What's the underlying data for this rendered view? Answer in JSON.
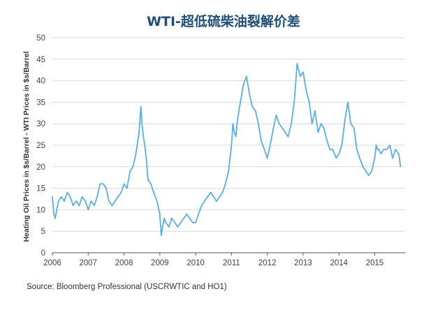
{
  "title": "WTI-超低硫柴油裂解价差",
  "source": "Source: Bloomberg Professional (USCRWTIC and HO1)",
  "chart_data": {
    "type": "line",
    "title": "WTI-超低硫柴油裂解价差",
    "ylabel": "Heating Oil Prices in $s/Barrel - WTI Prices in $s/Barrel",
    "xlabel": "",
    "x_ticks": [
      "2006",
      "2007",
      "2008",
      "2009",
      "2010",
      "2011",
      "2012",
      "2013",
      "2014",
      "2015"
    ],
    "y_ticks": [
      0,
      5,
      10,
      15,
      20,
      25,
      30,
      35,
      40,
      45,
      50
    ],
    "xlim": [
      2006.0,
      2015.75
    ],
    "ylim": [
      0,
      50
    ],
    "grid": "horizontal",
    "line_color": "#5aaee0",
    "series": [
      {
        "x": [
          2006.0,
          2006.04,
          2006.08,
          2006.12,
          2006.17,
          2006.25,
          2006.33,
          2006.42,
          2006.5,
          2006.58,
          2006.67,
          2006.75,
          2006.83,
          2006.92,
          2007.0,
          2007.08,
          2007.17,
          2007.25,
          2007.33,
          2007.42,
          2007.5,
          2007.58,
          2007.67,
          2007.75,
          2007.83,
          2007.92,
          2008.0,
          2008.08,
          2008.17,
          2008.25,
          2008.33,
          2008.42,
          2008.47,
          2008.5,
          2008.54,
          2008.58,
          2008.62,
          2008.67,
          2008.75,
          2008.83,
          2008.92,
          2009.0,
          2009.04,
          2009.08,
          2009.12,
          2009.17,
          2009.25,
          2009.33,
          2009.42,
          2009.5,
          2009.58,
          2009.67,
          2009.75,
          2009.83,
          2009.92,
          2010.0,
          2010.08,
          2010.17,
          2010.25,
          2010.33,
          2010.42,
          2010.5,
          2010.58,
          2010.67,
          2010.75,
          2010.83,
          2010.92,
          2011.0,
          2011.04,
          2011.08,
          2011.12,
          2011.17,
          2011.25,
          2011.33,
          2011.42,
          2011.5,
          2011.58,
          2011.67,
          2011.75,
          2011.83,
          2011.92,
          2012.0,
          2012.08,
          2012.17,
          2012.25,
          2012.33,
          2012.42,
          2012.5,
          2012.58,
          2012.67,
          2012.75,
          2012.79,
          2012.83,
          2012.92,
          2013.0,
          2013.08,
          2013.17,
          2013.25,
          2013.33,
          2013.42,
          2013.5,
          2013.58,
          2013.67,
          2013.75,
          2013.83,
          2013.92,
          2014.0,
          2014.08,
          2014.17,
          2014.25,
          2014.33,
          2014.42,
          2014.5,
          2014.58,
          2014.67,
          2014.75,
          2014.83,
          2014.92,
          2015.0,
          2015.04,
          2015.08,
          2015.12,
          2015.17,
          2015.25,
          2015.33,
          2015.42,
          2015.5,
          2015.58,
          2015.67,
          2015.72
        ],
        "values": [
          13,
          9,
          8,
          10,
          12,
          13,
          12,
          14,
          13,
          11,
          12,
          11,
          13,
          12,
          10,
          12,
          11,
          13,
          16,
          16,
          15,
          12,
          11,
          12,
          13,
          14,
          16,
          15,
          19,
          20,
          23,
          28,
          34,
          30,
          27,
          25,
          22,
          17,
          16,
          14,
          12,
          9,
          4,
          6,
          8,
          7,
          6,
          8,
          7,
          6,
          7,
          8,
          9,
          8,
          7,
          7,
          9,
          11,
          12,
          13,
          14,
          13,
          12,
          13,
          14,
          16,
          19,
          25,
          30,
          28,
          27,
          31,
          35,
          39,
          41,
          37,
          34,
          33,
          30,
          26,
          24,
          22,
          25,
          29,
          32,
          30,
          29,
          28,
          27,
          30,
          35,
          39,
          44,
          41,
          42,
          38,
          35,
          30,
          33,
          28,
          30,
          29,
          26,
          24,
          24,
          22,
          23,
          25,
          31,
          35,
          30,
          29,
          24,
          22,
          20,
          19,
          18,
          19,
          22,
          25,
          24,
          24,
          23,
          24,
          24,
          25,
          22,
          24,
          23,
          20
        ]
      }
    ]
  }
}
